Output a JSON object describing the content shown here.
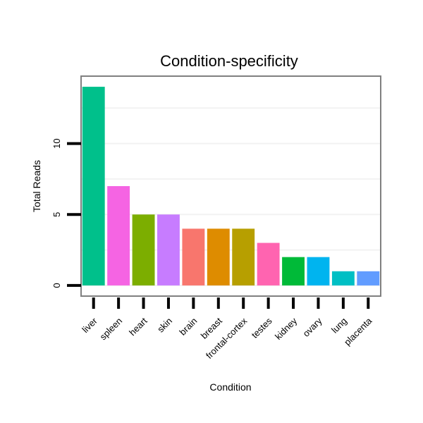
{
  "chart_data": {
    "type": "bar",
    "title": "Condition-specificity",
    "xlabel": "Condition",
    "ylabel": "Total Reads",
    "categories": [
      "liver",
      "spleen",
      "heart",
      "skin",
      "brain",
      "breast",
      "frontal-cortex",
      "testes",
      "kidney",
      "ovary",
      "lung",
      "placenta"
    ],
    "values": [
      14,
      7,
      5,
      5,
      4,
      4,
      4,
      3,
      2,
      2,
      1,
      1
    ],
    "colors": [
      "#00C08B",
      "#F564E3",
      "#7CAE00",
      "#C77CFF",
      "#F8766D",
      "#DE8C00",
      "#B79F00",
      "#FF64B0",
      "#00BA38",
      "#00B4EF",
      "#00BFC4",
      "#619CFF"
    ],
    "yticks": [
      0,
      5,
      10
    ],
    "ylim": [
      -0.75,
      14.75
    ],
    "grid": true,
    "legend": "none"
  }
}
